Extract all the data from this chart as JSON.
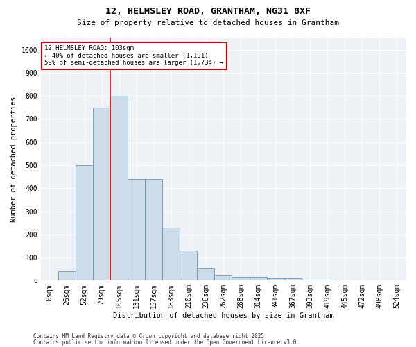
{
  "title1": "12, HELMSLEY ROAD, GRANTHAM, NG31 8XF",
  "title2": "Size of property relative to detached houses in Grantham",
  "xlabel": "Distribution of detached houses by size in Grantham",
  "ylabel": "Number of detached properties",
  "categories": [
    "0sqm",
    "26sqm",
    "52sqm",
    "79sqm",
    "105sqm",
    "131sqm",
    "157sqm",
    "183sqm",
    "210sqm",
    "236sqm",
    "262sqm",
    "288sqm",
    "314sqm",
    "341sqm",
    "367sqm",
    "393sqm",
    "419sqm",
    "445sqm",
    "472sqm",
    "498sqm",
    "524sqm"
  ],
  "values": [
    0,
    40,
    500,
    750,
    800,
    440,
    440,
    230,
    130,
    55,
    25,
    15,
    15,
    10,
    10,
    5,
    5,
    2,
    2,
    0,
    2
  ],
  "bar_color": "#ccdce8",
  "bar_edge_color": "#6699bb",
  "red_line_index": 4,
  "annotation_text": "12 HELMSLEY ROAD: 103sqm\n← 40% of detached houses are smaller (1,191)\n59% of semi-detached houses are larger (1,734) →",
  "annotation_box_color": "#ffffff",
  "annotation_box_edge": "#cc0000",
  "ylim": [
    0,
    1050
  ],
  "yticks": [
    0,
    100,
    200,
    300,
    400,
    500,
    600,
    700,
    800,
    900,
    1000
  ],
  "footnote1": "Contains HM Land Registry data © Crown copyright and database right 2025.",
  "footnote2": "Contains public sector information licensed under the Open Government Licence v3.0.",
  "bg_color": "#ffffff",
  "plot_bg_color": "#eef2f7",
  "grid_color": "#ffffff",
  "title_fontsize": 9.5,
  "subtitle_fontsize": 8,
  "tick_fontsize": 7,
  "label_fontsize": 7.5,
  "footnote_fontsize": 5.5
}
